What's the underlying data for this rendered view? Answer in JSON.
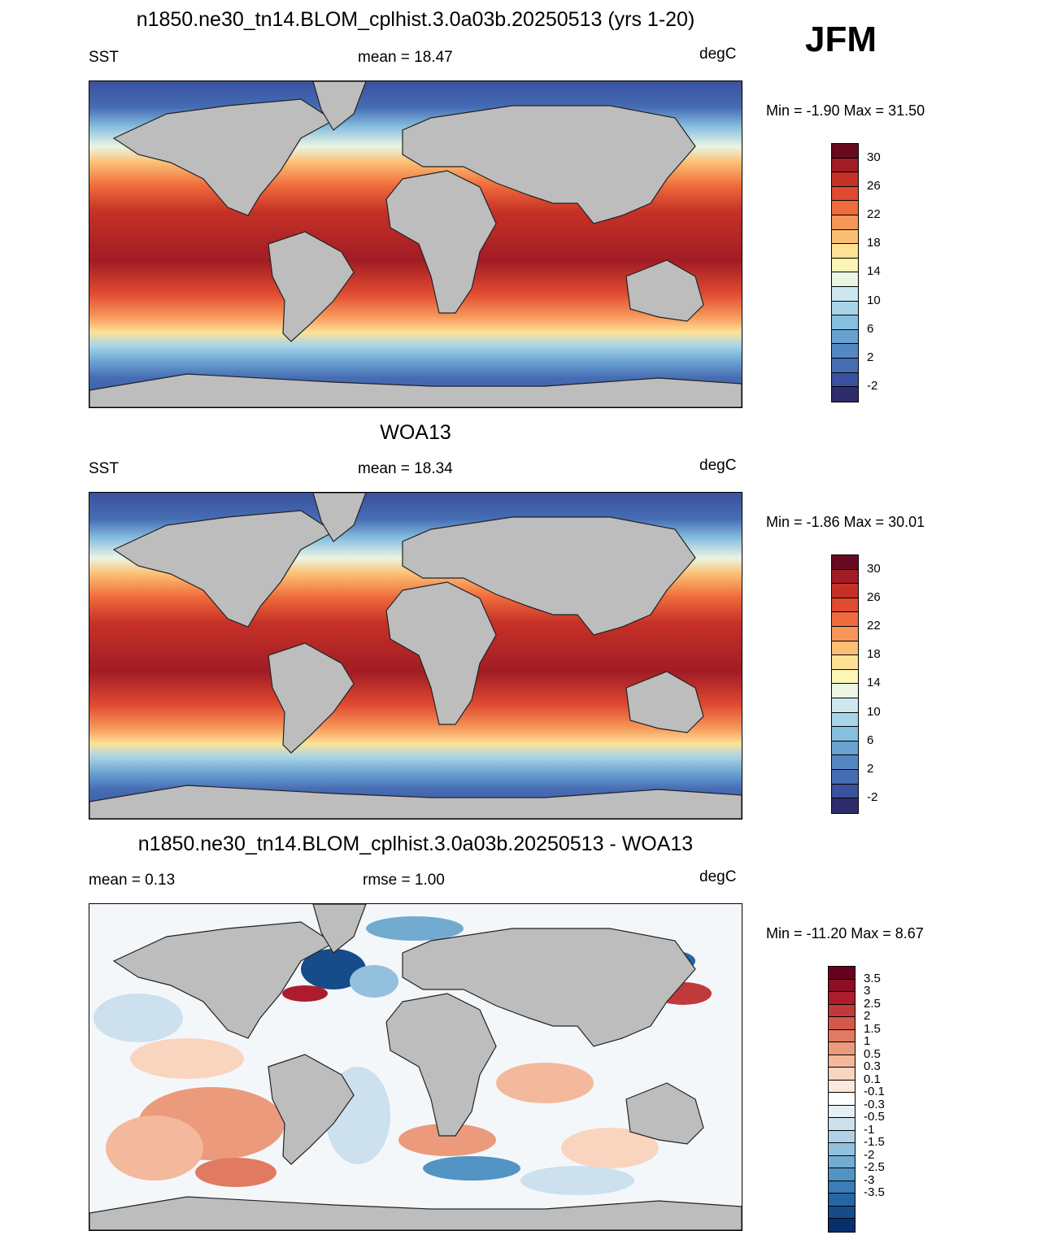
{
  "season_label": "JFM",
  "units": "degC",
  "panels": [
    {
      "id": "model",
      "title": "n1850.ne30_tn14.BLOM_cplhist.3.0a03b.20250513 (yrs 1-20)",
      "left_label": "SST",
      "center_label": "mean =  18.47",
      "right_label": "degC",
      "minmax": "Min =  -1.90 Max =  31.50",
      "colorbar": {
        "colors": [
          "#670a1f",
          "#a11c25",
          "#c63127",
          "#e04a30",
          "#ef6b3b",
          "#f69659",
          "#fbbf73",
          "#fde296",
          "#fbf6b6",
          "#eaf5e3",
          "#cde7ef",
          "#a9d5e9",
          "#87bfdf",
          "#6aa2cf",
          "#5587c3",
          "#466cb4",
          "#3a519f",
          "#2f2c6b"
        ],
        "ticks": [
          "30",
          "26",
          "22",
          "18",
          "14",
          "10",
          "6",
          "2",
          "-2"
        ]
      }
    },
    {
      "id": "obs",
      "title": "WOA13",
      "left_label": "SST",
      "center_label": "mean =  18.34",
      "right_label": "degC",
      "minmax": "Min =  -1.86 Max =  30.01",
      "colorbar": {
        "colors": [
          "#670a1f",
          "#a11c25",
          "#c63127",
          "#e04a30",
          "#ef6b3b",
          "#f69659",
          "#fbbf73",
          "#fde296",
          "#fbf6b6",
          "#eaf5e3",
          "#cde7ef",
          "#a9d5e9",
          "#87bfdf",
          "#6aa2cf",
          "#5587c3",
          "#466cb4",
          "#3a519f",
          "#2f2c6b"
        ],
        "ticks": [
          "30",
          "26",
          "22",
          "18",
          "14",
          "10",
          "6",
          "2",
          "-2"
        ]
      }
    },
    {
      "id": "diff",
      "title": "n1850.ne30_tn14.BLOM_cplhist.3.0a03b.20250513 - WOA13",
      "left_label": "mean =   0.13",
      "center_label": "rmse =   1.00",
      "right_label": "degC",
      "minmax": "Min = -11.20 Max =   8.67",
      "colorbar": {
        "colors": [
          "#67001f",
          "#8c0d25",
          "#ac1c2c",
          "#c13a3b",
          "#d3594b",
          "#e07a60",
          "#eb9a7c",
          "#f4b99c",
          "#f9d4bf",
          "#fde9dc",
          "#ffffff",
          "#e5eff6",
          "#cce0ee",
          "#b0d1e6",
          "#93c1dd",
          "#72abd0",
          "#5294c3",
          "#3a7db7",
          "#2765a4",
          "#164c8a",
          "#08306b"
        ],
        "ticks": [
          "3.5",
          "3",
          "2.5",
          "2",
          "1.5",
          "1",
          "0.5",
          "0.3",
          "0.1",
          "-0.1",
          "-0.3",
          "-0.5",
          "-1",
          "-1.5",
          "-2",
          "-2.5",
          "-3",
          "-3.5"
        ]
      }
    }
  ]
}
